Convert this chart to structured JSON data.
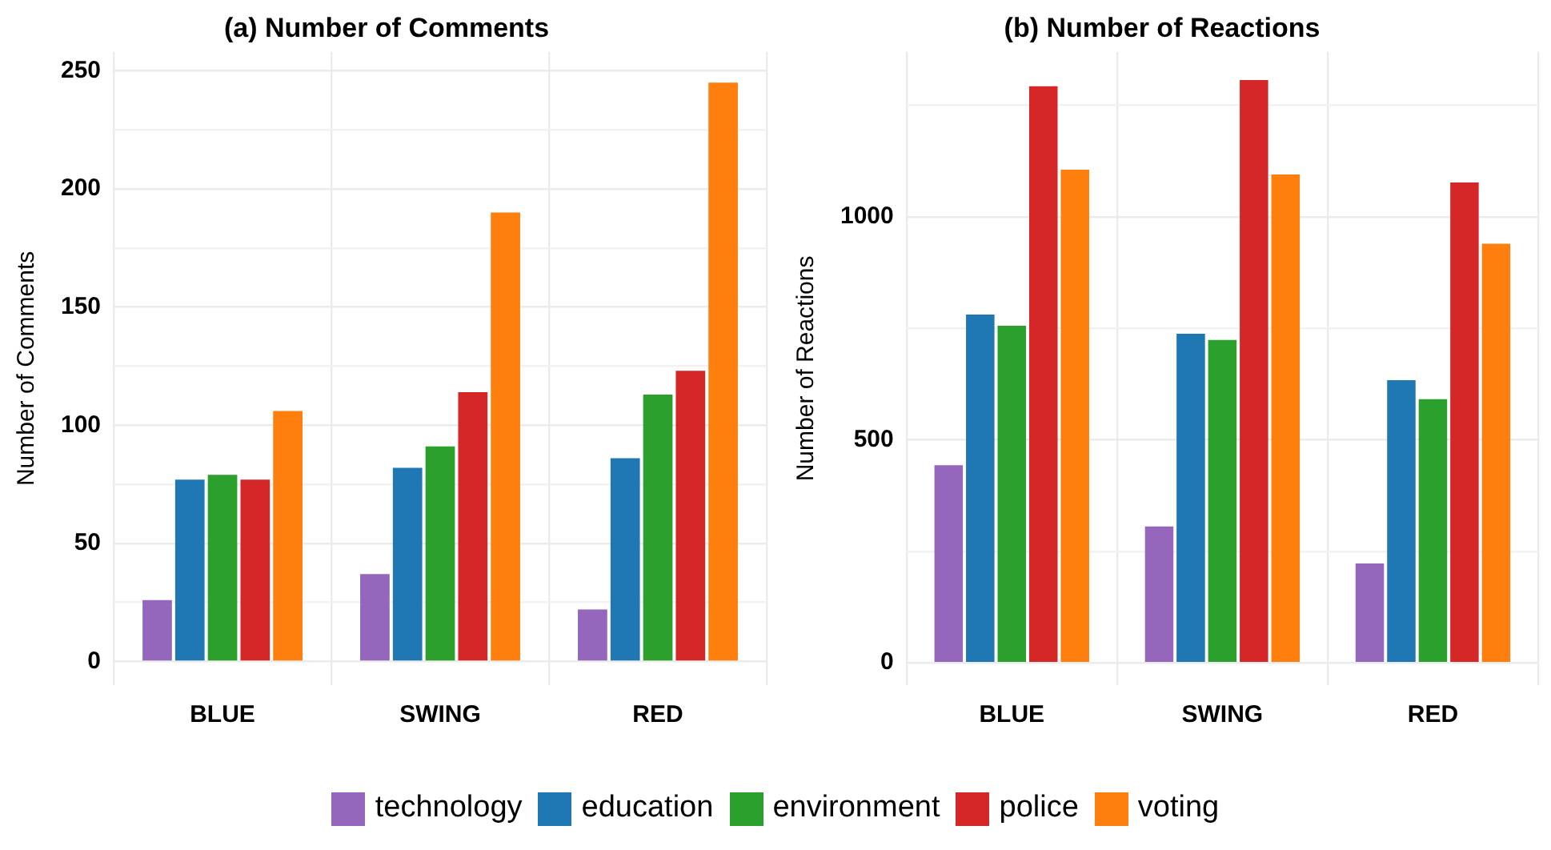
{
  "chart_data": [
    {
      "type": "bar",
      "title": "(a) Number of Comments",
      "ylabel": "Number of Comments",
      "categories": [
        "BLUE",
        "SWING",
        "RED"
      ],
      "series": [
        {
          "color": "#9467bd",
          "values": [
            26,
            37,
            22
          ]
        },
        {
          "color": "#1f77b4",
          "values": [
            77,
            82,
            86
          ]
        },
        {
          "color": "#2ca02c",
          "values": [
            79,
            91,
            113
          ]
        },
        {
          "color": "#d62728",
          "values": [
            77,
            114,
            123
          ]
        },
        {
          "color": "#ff7f0e",
          "values": [
            106,
            190,
            245
          ]
        }
      ],
      "ylim": [
        -10,
        258
      ],
      "yticks": [
        0,
        {
          "value": 25,
          "label": null
        },
        50,
        {
          "value": 75,
          "label": null
        },
        100,
        {
          "value": 125,
          "label": null
        },
        150,
        {
          "value": 175,
          "label": null
        },
        200,
        {
          "value": 225,
          "label": null
        },
        250
      ],
      "grid": true
    },
    {
      "type": "bar",
      "title": "(b) Number of Reactions",
      "ylabel": "Number of Reactions",
      "categories": [
        "BLUE",
        "SWING",
        "RED"
      ],
      "series": [
        {
          "name": "technology",
          "color": "#9467bd",
          "values": [
            443,
            306,
            223
          ]
        },
        {
          "name": "education",
          "color": "#1f77b4",
          "values": [
            781,
            738,
            634
          ]
        },
        {
          "name": "environment",
          "color": "#2ca02c",
          "values": [
            756,
            724,
            591
          ]
        },
        {
          "name": "police",
          "color": "#d62728",
          "values": [
            1293,
            1307,
            1077
          ]
        },
        {
          "name": "voting",
          "color": "#ff7f0e",
          "values": [
            1106,
            1095,
            940
          ]
        }
      ],
      "ylim": [
        -50,
        1370
      ],
      "yticks": [
        0,
        {
          "value": 250,
          "label": null
        },
        500,
        {
          "value": 750,
          "label": null
        },
        1000,
        {
          "value": 1250,
          "label": null
        }
      ],
      "grid": true,
      "legend": "bottom"
    }
  ]
}
